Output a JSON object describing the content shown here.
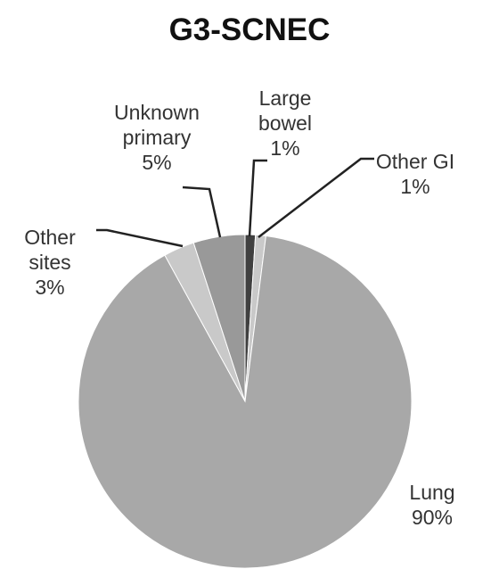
{
  "chart_data": {
    "type": "pie",
    "title": "G3-SCNEC",
    "categories": [
      "Large\nbowel",
      "Other GI",
      "Lung",
      "Other\nsites",
      "Unknown\nprimary"
    ],
    "values": [
      1,
      1,
      90,
      3,
      5
    ],
    "value_labels": [
      "1%",
      "1%",
      "90%",
      "3%",
      "5%"
    ],
    "colors": [
      "#404040",
      "#c9c9c9",
      "#a8a8a8",
      "#c9c9c9",
      "#999999"
    ]
  }
}
